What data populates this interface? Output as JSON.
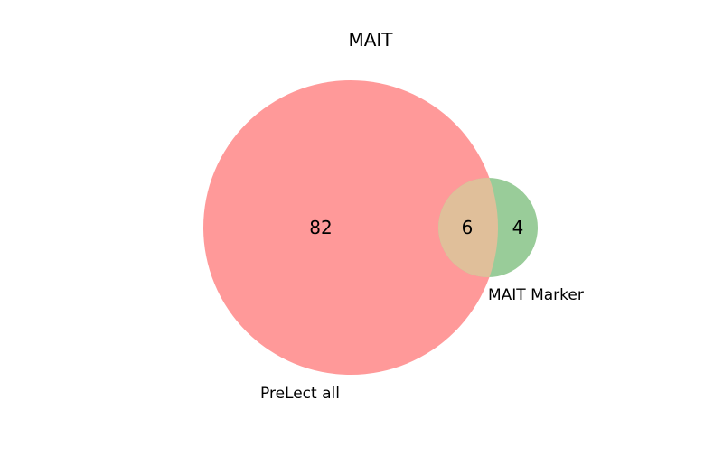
{
  "title": "MAIT",
  "sets": [
    {
      "id": "A",
      "label": "PreLect all",
      "color": "#ff9999"
    },
    {
      "id": "B",
      "label": "MAIT Marker",
      "color": "#99cc99"
    }
  ],
  "regions": {
    "A_only": "82",
    "A_and_B": "6",
    "B_only": "4"
  },
  "overlap_color": "#e0bf9a"
}
